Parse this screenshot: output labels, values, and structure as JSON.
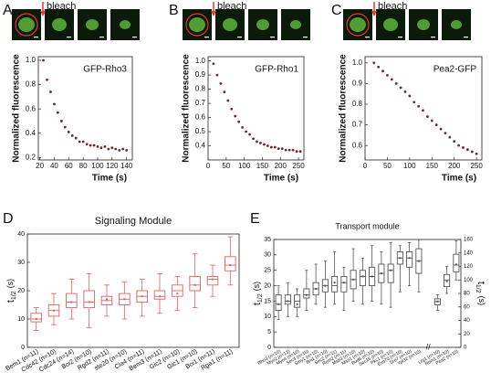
{
  "chart_data": [
    {
      "type": "scatter",
      "panel": "A",
      "annotation": "bleach",
      "label": "GFP-Rho3",
      "xlabel": "Time (s)",
      "ylabel": "Normalized fluorescence",
      "color": "#6b2a2a",
      "xlim": [
        18,
        148
      ],
      "xticks": [
        20,
        40,
        60,
        80,
        100,
        120,
        140
      ],
      "ylim": [
        0.18,
        1.03
      ],
      "yticks": [
        0.2,
        0.4,
        0.6,
        0.8,
        {
          "value": 1,
          "label": "1.0"
        }
      ],
      "x": [
        25,
        30,
        35,
        40,
        45,
        50,
        55,
        60,
        65,
        70,
        75,
        80,
        85,
        90,
        95,
        100,
        105,
        110,
        115,
        120,
        125,
        130,
        135,
        140
      ],
      "values": [
        1.0,
        0.84,
        0.74,
        0.64,
        0.57,
        0.5,
        0.45,
        0.41,
        0.38,
        0.36,
        0.33,
        0.33,
        0.31,
        0.3,
        0.3,
        0.29,
        0.28,
        0.29,
        0.27,
        0.28,
        0.27,
        0.26,
        0.27,
        0.26
      ]
    },
    {
      "type": "scatter",
      "panel": "B",
      "annotation": "bleach",
      "label": "GFP-Rho1",
      "xlabel": "Time (s)",
      "ylabel": "Normalized fluorescence",
      "color": "#6b2a2a",
      "xlim": [
        0,
        265
      ],
      "xticks": [
        0,
        50,
        100,
        150,
        200,
        250
      ],
      "ylim": [
        0.3,
        1.03
      ],
      "yticks": [
        0.4,
        0.5,
        0.6,
        0.7,
        0.8,
        0.9,
        {
          "value": 1,
          "label": "1.0"
        }
      ],
      "x": [
        15,
        25,
        35,
        45,
        55,
        65,
        75,
        85,
        95,
        105,
        115,
        125,
        135,
        145,
        155,
        165,
        175,
        185,
        195,
        205,
        215,
        225,
        235,
        245,
        255
      ],
      "values": [
        0.98,
        0.9,
        0.84,
        0.78,
        0.72,
        0.66,
        0.61,
        0.57,
        0.53,
        0.5,
        0.48,
        0.45,
        0.43,
        0.42,
        0.41,
        0.4,
        0.39,
        0.39,
        0.38,
        0.38,
        0.37,
        0.37,
        0.37,
        0.36,
        0.36
      ]
    },
    {
      "type": "scatter",
      "panel": "C",
      "annotation": "bleach",
      "label": "Pea2-GFP",
      "xlabel": "Time (s)",
      "ylabel": "Normalized fluorescence",
      "color": "#6b2a2a",
      "xlim": [
        0,
        262
      ],
      "xticks": [
        0,
        50,
        100,
        150,
        200,
        250
      ],
      "ylim": [
        0.53,
        1.03
      ],
      "yticks": [
        0.6,
        0.7,
        0.8,
        0.9,
        {
          "value": 1,
          "label": "1.0"
        }
      ],
      "x": [
        20,
        30,
        40,
        50,
        60,
        70,
        80,
        90,
        100,
        110,
        120,
        130,
        140,
        150,
        160,
        170,
        180,
        190,
        200,
        210,
        220,
        230,
        240,
        250
      ],
      "values": [
        1.0,
        0.98,
        0.96,
        0.94,
        0.92,
        0.9,
        0.88,
        0.86,
        0.84,
        0.81,
        0.79,
        0.77,
        0.74,
        0.72,
        0.7,
        0.68,
        0.66,
        0.64,
        0.62,
        0.6,
        0.59,
        0.58,
        0.57,
        0.56
      ]
    },
    {
      "type": "box",
      "panel": "D",
      "title": "Signaling Module",
      "color": "#e06060",
      "ylabel": {
        "main": "t",
        "sub": "1/2",
        "unit": "(s)"
      },
      "ylim": [
        0,
        40
      ],
      "yticks": [
        0,
        10,
        20,
        30,
        40
      ],
      "groups": [
        {
          "axis": "y",
          "boxes": [
            {
              "label": "Bem1 (n=11)",
              "min": 6,
              "q1": 9,
              "median": 10,
              "q3": 12,
              "max": 14,
              "mean": 10
            },
            {
              "label": "Cdc42 (n=10)",
              "min": 8,
              "q1": 11,
              "median": 13,
              "q3": 15,
              "max": 19,
              "mean": 13
            },
            {
              "label": "Cdc24 (n=14)",
              "min": 10,
              "q1": 14,
              "median": 16,
              "q3": 19,
              "max": 24,
              "mean": 16
            },
            {
              "label": "Boi2 (n=10)",
              "min": 7,
              "q1": 14,
              "median": 16,
              "q3": 20,
              "max": 26,
              "mean": 16
            },
            {
              "label": "Rgd2 (n=11)",
              "min": 11,
              "q1": 15,
              "median": 16.5,
              "q3": 18,
              "max": 22,
              "mean": 17
            },
            {
              "label": "ste20 (n=10)",
              "min": 10,
              "q1": 15,
              "median": 17,
              "q3": 19,
              "max": 23,
              "mean": 17
            },
            {
              "label": "Cla4 (n=11)",
              "min": 11,
              "q1": 16,
              "median": 18,
              "q3": 20,
              "max": 24,
              "mean": 18
            },
            {
              "label": "Bem3 (n=11)",
              "min": 12,
              "q1": 17,
              "median": 18,
              "q3": 20,
              "max": 26,
              "mean": 18
            },
            {
              "label": "Gic2 (n=10)",
              "min": 13,
              "q1": 18,
              "median": 20,
              "q3": 22,
              "max": 25,
              "mean": 19
            },
            {
              "label": "Gic1 (n=10)",
              "min": 14,
              "q1": 20,
              "median": 22,
              "q3": 25,
              "max": 33,
              "mean": 22
            },
            {
              "label": "Boi1 (n=11)",
              "min": 18,
              "q1": 22,
              "median": 24,
              "q3": 25,
              "max": 29,
              "mean": 24
            },
            {
              "label": "Rga1 (n=11)",
              "min": 22,
              "q1": 27,
              "median": 29,
              "q3": 32,
              "max": 39,
              "mean": 29
            }
          ]
        }
      ]
    },
    {
      "type": "box",
      "panel": "E",
      "title": "Transport module",
      "color": "#555555",
      "ylabel": {
        "main": "t",
        "sub": "1/2",
        "unit": "(s)"
      },
      "y2label": {
        "main": "t",
        "sub": "1/2",
        "unit": "(s)"
      },
      "ylim": [
        0,
        35
      ],
      "yticks": [
        0,
        5,
        10,
        15,
        20,
        25,
        30,
        35
      ],
      "y2lim": [
        0,
        160
      ],
      "y2ticks": [
        0,
        20,
        40,
        60,
        80,
        100,
        120,
        140,
        160
      ],
      "groups": [
        {
          "axis": "y",
          "boxes": [
            {
              "label": "Rho3 (n=10)",
              "min": 9,
              "q1": 12,
              "median": 14,
              "q3": 17,
              "max": 20,
              "mean": 14
            },
            {
              "label": "Myo2 (n=13)",
              "min": 10,
              "q1": 14,
              "median": 15,
              "q3": 17,
              "max": 21,
              "mean": 15
            },
            {
              "label": "Myo4 (n=10)",
              "min": 10,
              "q1": 13,
              "median": 15,
              "q3": 17,
              "max": 19,
              "mean": 14
            },
            {
              "label": "Sec4 (n=15)",
              "min": 12,
              "q1": 16,
              "median": 17,
              "q3": 19,
              "max": 25,
              "mean": 17
            },
            {
              "label": "Smy1 (n=10)",
              "min": 14,
              "q1": 17,
              "median": 19,
              "q3": 21,
              "max": 27,
              "mean": 19
            },
            {
              "label": "Bni1 (n=10)",
              "min": 13,
              "q1": 18,
              "median": 20,
              "q3": 22,
              "max": 28,
              "mean": 20
            },
            {
              "label": "Sec2 (n=11)",
              "min": 14,
              "q1": 18,
              "median": 20,
              "q3": 23,
              "max": 31,
              "mean": 21
            },
            {
              "label": "Rom2 (n=11)",
              "min": 12,
              "q1": 18,
              "median": 21,
              "q3": 23,
              "max": 26,
              "mean": 21
            },
            {
              "label": "Msb3 (n=10)",
              "min": 15,
              "q1": 19,
              "median": 22,
              "q3": 25,
              "max": 32,
              "mean": 22
            },
            {
              "label": "Mso1 (n=10)",
              "min": 14,
              "q1": 20,
              "median": 23,
              "q3": 25,
              "max": 29,
              "mean": 23
            },
            {
              "label": "Bud6 (n=10)",
              "min": 15,
              "q1": 20,
              "median": 23,
              "q3": 26,
              "max": 33,
              "mean": 23
            },
            {
              "label": "Sec15 (n=10)",
              "min": 14,
              "q1": 21,
              "median": 24,
              "q3": 27,
              "max": 31,
              "mean": 24
            },
            {
              "label": "Pkc1 (n=10)",
              "min": 13,
              "q1": 21,
              "median": 25,
              "q3": 27,
              "max": 34,
              "mean": 25
            },
            {
              "label": "Exo70 (n=10)",
              "min": 18,
              "q1": 27,
              "median": 29,
              "q3": 31,
              "max": 33,
              "mean": 29
            },
            {
              "label": "Sro7 (n=10)",
              "min": 20,
              "q1": 26,
              "median": 29,
              "q3": 31,
              "max": 34,
              "mean": 29
            },
            {
              "label": "Ypt32 (n=10)",
              "min": 18,
              "q1": 24,
              "median": 28,
              "q3": 32,
              "max": 35,
              "mean": 28
            }
          ]
        },
        {
          "axis": "y2",
          "boxes": [
            {
              "label": "Lrg1 (n=10)",
              "min": 55,
              "q1": 63,
              "median": 68,
              "q3": 72,
              "max": 78,
              "mean": 68
            },
            {
              "label": "Rom1 (n=10)",
              "min": 80,
              "q1": 90,
              "median": 100,
              "q3": 108,
              "max": 120,
              "mean": 98
            },
            {
              "label": "Pea2 (n=10)",
              "min": 100,
              "q1": 112,
              "median": 122,
              "q3": 138,
              "max": 158,
              "mean": 123
            }
          ]
        }
      ]
    }
  ]
}
